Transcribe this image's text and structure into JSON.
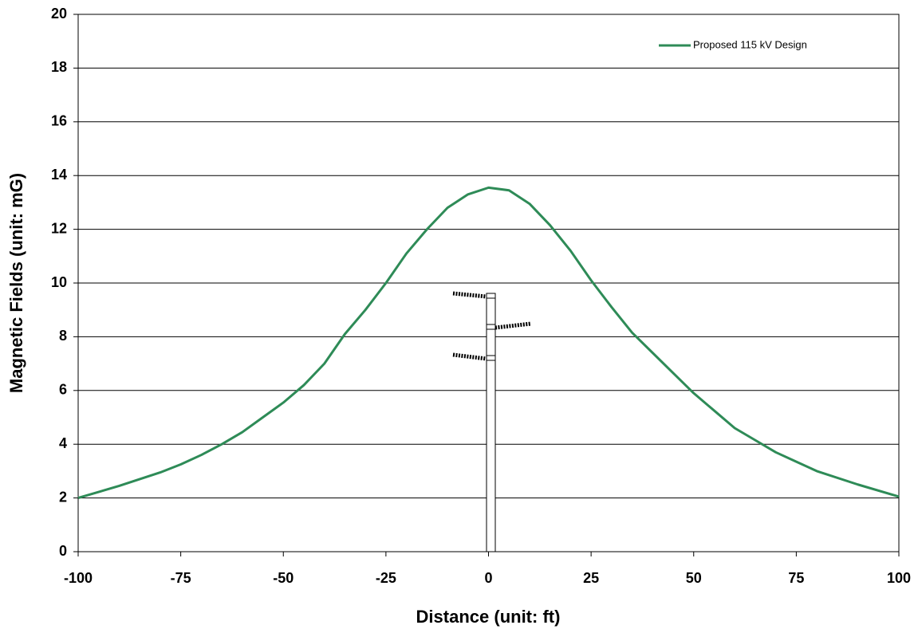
{
  "chart_data": {
    "type": "line",
    "x_label": "Distance (unit: ft)",
    "y_label": "Magnetic Fields (unit: mG)",
    "x": [
      -100,
      -90,
      -80,
      -75,
      -70,
      -65,
      -60,
      -55,
      -50,
      -45,
      -40,
      -35,
      -30,
      -25,
      -20,
      -15,
      -10,
      -5,
      0,
      5,
      10,
      15,
      20,
      25,
      30,
      35,
      40,
      45,
      50,
      55,
      60,
      65,
      70,
      75,
      80,
      90,
      100
    ],
    "series": [
      {
        "name": "Proposed 115 kV Design",
        "color": "#2e8b57",
        "values": [
          2.0,
          2.45,
          2.95,
          3.25,
          3.6,
          4.0,
          4.45,
          5.0,
          5.55,
          6.2,
          7.0,
          8.1,
          9.0,
          10.0,
          11.1,
          12.0,
          12.8,
          13.3,
          13.55,
          13.45,
          12.95,
          12.15,
          11.2,
          10.1,
          9.1,
          8.15,
          7.4,
          6.65,
          5.9,
          5.25,
          4.6,
          4.15,
          3.7,
          3.35,
          3.0,
          2.5,
          2.05
        ]
      }
    ],
    "xlim": [
      -100,
      100
    ],
    "xticks": [
      -100,
      -75,
      -50,
      -25,
      0,
      25,
      50,
      75,
      100
    ],
    "ylim": [
      0,
      20
    ],
    "yticks": [
      0,
      2,
      4,
      6,
      8,
      10,
      12,
      14,
      16,
      18,
      20
    ],
    "grid": true,
    "legend": "top-right"
  }
}
